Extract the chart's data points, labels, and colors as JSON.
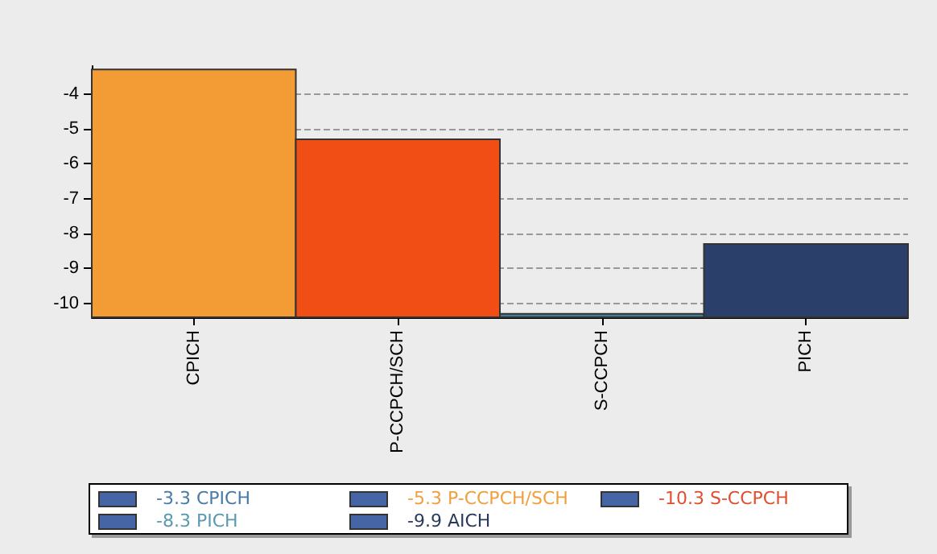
{
  "chart_data": {
    "type": "bar",
    "categories": [
      "CPICH",
      "P-CCPCH/SCH",
      "S-CCPCH",
      "PICH"
    ],
    "values": [
      7.1,
      5.1,
      0.1,
      2.1
    ],
    "base": [
      -10.4,
      -10.4,
      -10.4,
      -10.4
    ],
    "colors": [
      "#f39c35",
      "#f04e15",
      "#3f7f9a",
      "#2b3f6b"
    ],
    "ylim": [
      -10.4,
      -3.2
    ],
    "yticks": [
      -10,
      -9,
      -8,
      -7,
      -6,
      -5,
      -4
    ],
    "grid": "y",
    "annotations": [
      "-3.3  CPICH",
      "-5.3  P-CCPCH/SCH",
      "-10.3  S-CCPCH",
      "-8.3  PICH",
      "-9.9  AICH"
    ]
  }
}
